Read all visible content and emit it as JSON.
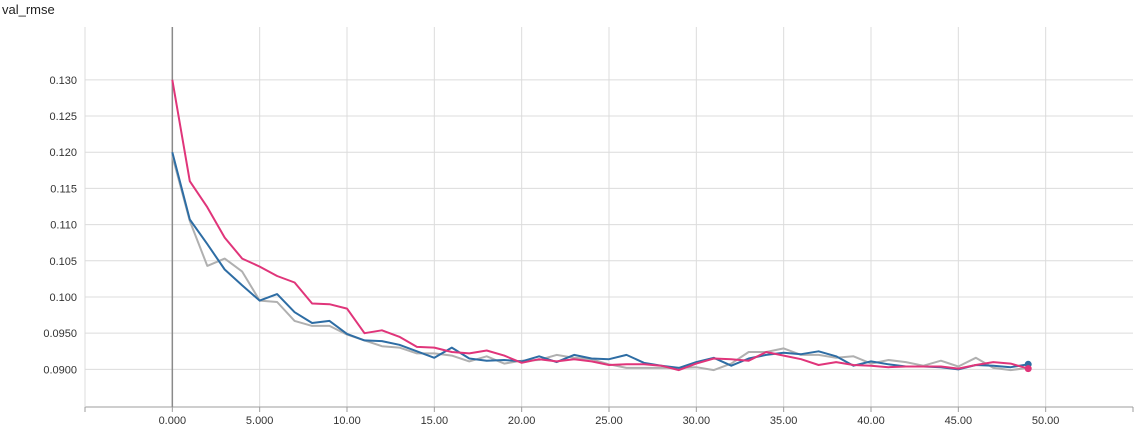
{
  "chart_data": {
    "type": "line",
    "title": "val_rmse",
    "xlabel": "",
    "ylabel": "",
    "xlim": [
      -5,
      55
    ],
    "ylim": [
      0.0848,
      0.1373
    ],
    "grid": true,
    "x_ticks": [
      0,
      5,
      10,
      15,
      20,
      25,
      30,
      35,
      40,
      45,
      50
    ],
    "x_tick_labels": [
      "0.000",
      "5.000",
      "10.00",
      "15.00",
      "20.00",
      "25.00",
      "30.00",
      "35.00",
      "40.00",
      "45.00",
      "50.00"
    ],
    "y_ticks": [
      0.09,
      0.095,
      0.1,
      0.105,
      0.11,
      0.115,
      0.12,
      0.125,
      0.13
    ],
    "y_tick_labels": [
      "0.0900",
      "0.0950",
      "0.100",
      "0.105",
      "0.110",
      "0.115",
      "0.120",
      "0.125",
      "0.130"
    ],
    "x": [
      0,
      1,
      2,
      3,
      4,
      5,
      6,
      7,
      8,
      9,
      10,
      11,
      12,
      13,
      14,
      15,
      16,
      17,
      18,
      19,
      20,
      21,
      22,
      23,
      24,
      25,
      26,
      27,
      28,
      29,
      30,
      31,
      32,
      33,
      34,
      35,
      36,
      37,
      38,
      39,
      40,
      41,
      42,
      43,
      44,
      45,
      46,
      47,
      48,
      49
    ],
    "series": [
      {
        "color": "#b0b0b0",
        "marker": false,
        "values": [
          0.1195,
          0.1105,
          0.1043,
          0.1053,
          0.1035,
          0.0995,
          0.0993,
          0.0967,
          0.096,
          0.096,
          0.0948,
          0.094,
          0.0932,
          0.093,
          0.0922,
          0.0922,
          0.0919,
          0.0911,
          0.0918,
          0.0908,
          0.0912,
          0.0913,
          0.092,
          0.0916,
          0.0914,
          0.0907,
          0.0902,
          0.0902,
          0.0902,
          0.0902,
          0.0903,
          0.0899,
          0.0908,
          0.0924,
          0.0924,
          0.0929,
          0.092,
          0.092,
          0.0916,
          0.0918,
          0.0908,
          0.0913,
          0.091,
          0.0905,
          0.0912,
          0.0904,
          0.0916,
          0.0902,
          0.0899,
          0.0902
        ]
      },
      {
        "color": "#2e6da4",
        "marker": true,
        "values": [
          0.12,
          0.1107,
          0.1073,
          0.1038,
          0.1016,
          0.0995,
          0.1004,
          0.0979,
          0.0964,
          0.0967,
          0.0949,
          0.094,
          0.0939,
          0.0934,
          0.0925,
          0.0916,
          0.093,
          0.0915,
          0.0912,
          0.0913,
          0.0911,
          0.0918,
          0.091,
          0.092,
          0.0915,
          0.0914,
          0.092,
          0.0909,
          0.0905,
          0.0902,
          0.091,
          0.0916,
          0.0905,
          0.0915,
          0.092,
          0.0923,
          0.0921,
          0.0925,
          0.0918,
          0.0905,
          0.0911,
          0.0907,
          0.0904,
          0.0904,
          0.0903,
          0.09,
          0.0906,
          0.0905,
          0.0903,
          0.0907
        ]
      },
      {
        "color": "#e0357a",
        "marker": true,
        "values": [
          0.13,
          0.116,
          0.1124,
          0.1082,
          0.1053,
          0.1042,
          0.1029,
          0.102,
          0.0991,
          0.099,
          0.0984,
          0.095,
          0.0954,
          0.0945,
          0.0931,
          0.093,
          0.0924,
          0.0922,
          0.0926,
          0.0919,
          0.0909,
          0.0914,
          0.0911,
          0.0914,
          0.0911,
          0.0906,
          0.0907,
          0.0907,
          0.0905,
          0.0899,
          0.0908,
          0.0915,
          0.0914,
          0.0912,
          0.0924,
          0.0919,
          0.0914,
          0.0906,
          0.091,
          0.0906,
          0.0905,
          0.0903,
          0.0904,
          0.0904,
          0.0904,
          0.0901,
          0.0906,
          0.091,
          0.0908,
          0.0901
        ]
      }
    ]
  }
}
